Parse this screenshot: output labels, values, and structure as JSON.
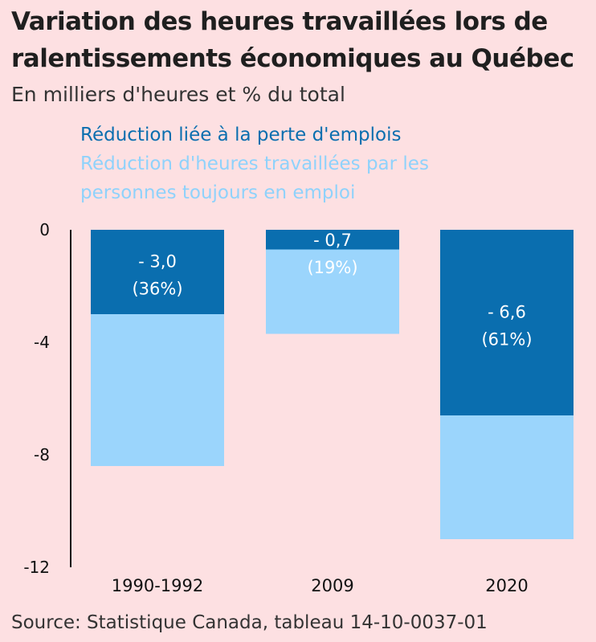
{
  "title": "Variation des heures travaillées lors de ralentissements économiques au Québec",
  "subtitle": "En milliers d'heures et % du total",
  "source": "Source: Statistique Canada, tableau 14-10-0037-01",
  "colors": {
    "background": "#fde0e2",
    "job_loss": "#0a6eaf",
    "hours": "#9bd5fc"
  },
  "chart_data": {
    "type": "bar",
    "stacked": true,
    "categories": [
      "1990-1992",
      "2009",
      "2020"
    ],
    "series": [
      {
        "name": "Réduction liée à la perte d'emplois",
        "values": [
          -3.0,
          -0.7,
          -6.6
        ],
        "labels": [
          "- 3,0",
          "- 0,7",
          "- 6,6"
        ],
        "pct_labels": [
          "(36%)",
          "(19%)",
          "(61%)"
        ]
      },
      {
        "name": "Réduction d'heures travaillées par les personnes toujours en emploi",
        "values": [
          -5.4,
          -3.0,
          -4.4
        ]
      }
    ],
    "yticks": [
      "0",
      "-4",
      "-8",
      "-12"
    ],
    "ylim": [
      -12,
      0
    ],
    "grid": false,
    "legend": "top"
  }
}
